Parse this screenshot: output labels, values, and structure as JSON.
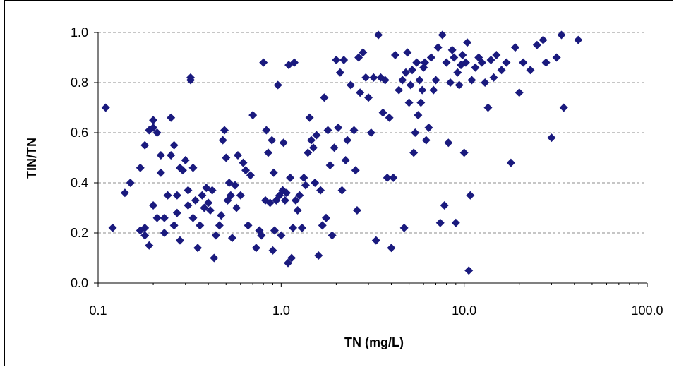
{
  "chart_data": {
    "type": "scatter",
    "title": "",
    "xlabel": "TN (mg/L)",
    "ylabel": "TIN/TN",
    "x_scale": "log",
    "xlim": [
      0.1,
      100.0
    ],
    "ylim": [
      0.0,
      1.0
    ],
    "x_ticks": [
      0.1,
      1.0,
      10.0,
      100.0
    ],
    "x_tick_labels": [
      "0.1",
      "1.0",
      "10.0",
      "100.0"
    ],
    "y_ticks": [
      0.0,
      0.2,
      0.4,
      0.6,
      0.8,
      1.0
    ],
    "y_tick_labels": [
      "0.0",
      "0.2",
      "0.4",
      "0.6",
      "0.8",
      "1.0"
    ],
    "grid": "horizontal dashed",
    "legend": "none",
    "marker": "diamond",
    "marker_color": "#1a1a7e",
    "points": [
      [
        0.11,
        0.7
      ],
      [
        0.12,
        0.22
      ],
      [
        0.14,
        0.36
      ],
      [
        0.15,
        0.4
      ],
      [
        0.17,
        0.46
      ],
      [
        0.17,
        0.21
      ],
      [
        0.18,
        0.55
      ],
      [
        0.18,
        0.22
      ],
      [
        0.18,
        0.19
      ],
      [
        0.19,
        0.15
      ],
      [
        0.19,
        0.61
      ],
      [
        0.2,
        0.65
      ],
      [
        0.2,
        0.31
      ],
      [
        0.2,
        0.62
      ],
      [
        0.21,
        0.6
      ],
      [
        0.21,
        0.26
      ],
      [
        0.22,
        0.51
      ],
      [
        0.22,
        0.44
      ],
      [
        0.23,
        0.26
      ],
      [
        0.23,
        0.2
      ],
      [
        0.24,
        0.35
      ],
      [
        0.25,
        0.66
      ],
      [
        0.25,
        0.51
      ],
      [
        0.26,
        0.55
      ],
      [
        0.26,
        0.23
      ],
      [
        0.27,
        0.28
      ],
      [
        0.27,
        0.35
      ],
      [
        0.28,
        0.17
      ],
      [
        0.28,
        0.46
      ],
      [
        0.29,
        0.45
      ],
      [
        0.3,
        0.49
      ],
      [
        0.31,
        0.37
      ],
      [
        0.31,
        0.31
      ],
      [
        0.32,
        0.82
      ],
      [
        0.32,
        0.81
      ],
      [
        0.33,
        0.46
      ],
      [
        0.33,
        0.26
      ],
      [
        0.34,
        0.33
      ],
      [
        0.35,
        0.14
      ],
      [
        0.36,
        0.23
      ],
      [
        0.37,
        0.35
      ],
      [
        0.38,
        0.3
      ],
      [
        0.39,
        0.38
      ],
      [
        0.4,
        0.32
      ],
      [
        0.41,
        0.29
      ],
      [
        0.42,
        0.37
      ],
      [
        0.43,
        0.1
      ],
      [
        0.44,
        0.19
      ],
      [
        0.46,
        0.23
      ],
      [
        0.47,
        0.27
      ],
      [
        0.48,
        0.57
      ],
      [
        0.49,
        0.61
      ],
      [
        0.5,
        0.5
      ],
      [
        0.51,
        0.33
      ],
      [
        0.52,
        0.4
      ],
      [
        0.53,
        0.35
      ],
      [
        0.54,
        0.18
      ],
      [
        0.56,
        0.39
      ],
      [
        0.57,
        0.3
      ],
      [
        0.58,
        0.51
      ],
      [
        0.6,
        0.35
      ],
      [
        0.62,
        0.48
      ],
      [
        0.64,
        0.45
      ],
      [
        0.66,
        0.23
      ],
      [
        0.68,
        0.43
      ],
      [
        0.7,
        0.67
      ],
      [
        0.73,
        0.14
      ],
      [
        0.76,
        0.21
      ],
      [
        0.78,
        0.19
      ],
      [
        0.8,
        0.88
      ],
      [
        0.82,
        0.33
      ],
      [
        0.83,
        0.61
      ],
      [
        0.85,
        0.52
      ],
      [
        0.87,
        0.32
      ],
      [
        0.89,
        0.57
      ],
      [
        0.9,
        0.13
      ],
      [
        0.91,
        0.44
      ],
      [
        0.92,
        0.21
      ],
      [
        0.94,
        0.33
      ],
      [
        0.96,
        0.79
      ],
      [
        0.98,
        0.35
      ],
      [
        1.0,
        0.19
      ],
      [
        1.02,
        0.37
      ],
      [
        1.03,
        0.56
      ],
      [
        1.05,
        0.33
      ],
      [
        1.07,
        0.36
      ],
      [
        1.09,
        0.08
      ],
      [
        1.1,
        0.87
      ],
      [
        1.12,
        0.42
      ],
      [
        1.14,
        0.1
      ],
      [
        1.16,
        0.22
      ],
      [
        1.18,
        0.88
      ],
      [
        1.2,
        0.33
      ],
      [
        1.23,
        0.29
      ],
      [
        1.26,
        0.35
      ],
      [
        1.3,
        0.22
      ],
      [
        1.33,
        0.42
      ],
      [
        1.36,
        0.39
      ],
      [
        1.4,
        0.52
      ],
      [
        1.43,
        0.66
      ],
      [
        1.46,
        0.57
      ],
      [
        1.5,
        0.54
      ],
      [
        1.53,
        0.4
      ],
      [
        1.56,
        0.59
      ],
      [
        1.6,
        0.11
      ],
      [
        1.64,
        0.37
      ],
      [
        1.68,
        0.23
      ],
      [
        1.72,
        0.74
      ],
      [
        1.76,
        0.26
      ],
      [
        1.8,
        0.61
      ],
      [
        1.85,
        0.47
      ],
      [
        1.9,
        0.19
      ],
      [
        1.95,
        0.54
      ],
      [
        2.0,
        0.89
      ],
      [
        2.05,
        0.62
      ],
      [
        2.1,
        0.84
      ],
      [
        2.15,
        0.37
      ],
      [
        2.2,
        0.89
      ],
      [
        2.25,
        0.49
      ],
      [
        2.3,
        0.57
      ],
      [
        2.4,
        0.79
      ],
      [
        2.5,
        0.61
      ],
      [
        2.55,
        0.45
      ],
      [
        2.6,
        0.29
      ],
      [
        2.65,
        0.9
      ],
      [
        2.7,
        0.76
      ],
      [
        2.8,
        0.92
      ],
      [
        2.9,
        0.82
      ],
      [
        3.0,
        0.74
      ],
      [
        3.1,
        0.6
      ],
      [
        3.2,
        0.82
      ],
      [
        3.3,
        0.17
      ],
      [
        3.4,
        0.99
      ],
      [
        3.5,
        0.82
      ],
      [
        3.6,
        0.68
      ],
      [
        3.7,
        0.81
      ],
      [
        3.8,
        0.42
      ],
      [
        3.9,
        0.66
      ],
      [
        4.0,
        0.14
      ],
      [
        4.1,
        0.42
      ],
      [
        4.2,
        0.91
      ],
      [
        4.4,
        0.77
      ],
      [
        4.6,
        0.81
      ],
      [
        4.7,
        0.22
      ],
      [
        4.8,
        0.84
      ],
      [
        4.9,
        0.92
      ],
      [
        5.0,
        0.72
      ],
      [
        5.1,
        0.79
      ],
      [
        5.2,
        0.85
      ],
      [
        5.3,
        0.52
      ],
      [
        5.4,
        0.6
      ],
      [
        5.5,
        0.88
      ],
      [
        5.6,
        0.67
      ],
      [
        5.7,
        0.81
      ],
      [
        5.8,
        0.72
      ],
      [
        5.9,
        0.77
      ],
      [
        6.0,
        0.86
      ],
      [
        6.1,
        0.88
      ],
      [
        6.2,
        0.57
      ],
      [
        6.4,
        0.62
      ],
      [
        6.6,
        0.9
      ],
      [
        6.8,
        0.77
      ],
      [
        7.0,
        0.81
      ],
      [
        7.2,
        0.94
      ],
      [
        7.4,
        0.24
      ],
      [
        7.6,
        0.99
      ],
      [
        7.8,
        0.31
      ],
      [
        8.0,
        0.88
      ],
      [
        8.2,
        0.56
      ],
      [
        8.4,
        0.8
      ],
      [
        8.6,
        0.93
      ],
      [
        8.8,
        0.9
      ],
      [
        9.0,
        0.24
      ],
      [
        9.2,
        0.84
      ],
      [
        9.4,
        0.79
      ],
      [
        9.6,
        0.87
      ],
      [
        9.8,
        0.91
      ],
      [
        10.0,
        0.52
      ],
      [
        10.2,
        0.88
      ],
      [
        10.4,
        0.96
      ],
      [
        10.6,
        0.05
      ],
      [
        10.8,
        0.35
      ],
      [
        11.0,
        0.81
      ],
      [
        11.5,
        0.86
      ],
      [
        12.0,
        0.9
      ],
      [
        12.5,
        0.88
      ],
      [
        13.0,
        0.8
      ],
      [
        13.5,
        0.7
      ],
      [
        14.0,
        0.89
      ],
      [
        14.5,
        0.82
      ],
      [
        15.0,
        0.91
      ],
      [
        16.0,
        0.85
      ],
      [
        17.0,
        0.88
      ],
      [
        18.0,
        0.48
      ],
      [
        19.0,
        0.94
      ],
      [
        20.0,
        0.76
      ],
      [
        21.0,
        0.88
      ],
      [
        23.0,
        0.85
      ],
      [
        25.0,
        0.95
      ],
      [
        27.0,
        0.97
      ],
      [
        28.0,
        0.88
      ],
      [
        30.0,
        0.58
      ],
      [
        32.0,
        0.9
      ],
      [
        34.0,
        0.99
      ],
      [
        35.0,
        0.7
      ],
      [
        42.0,
        0.97
      ]
    ]
  }
}
